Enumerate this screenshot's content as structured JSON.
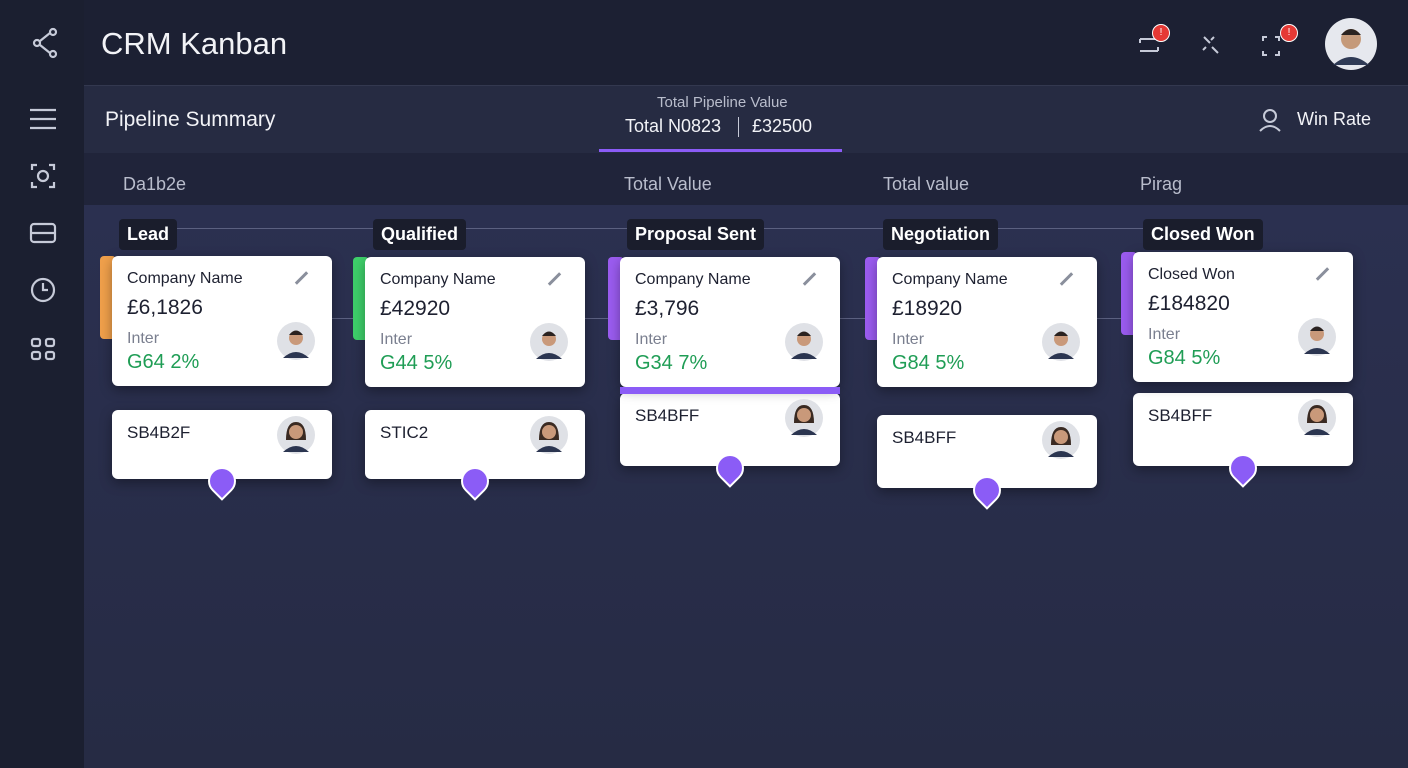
{
  "header": {
    "title": "CRM Kanban",
    "badges": [
      "!",
      "!"
    ]
  },
  "summary": {
    "title": "Pipeline Summary",
    "total_label": "Total Pipeline Value",
    "total_count": "Total N0823",
    "total_value": "£32500",
    "win_rate": "Win Rate"
  },
  "column_headers": [
    "Da1b2e",
    "Total Value",
    "Total value",
    "Pirag"
  ],
  "stages": [
    {
      "name": "Lead",
      "accent": "#f0a04b",
      "card": {
        "company": "Company Name",
        "value": "£6,1826",
        "label": "Inter",
        "rate": "G64 2%"
      },
      "sub": "SB4B2F"
    },
    {
      "name": "Qualified",
      "accent": "#3ecf6a",
      "card": {
        "company": "Company Name",
        "value": "£42920",
        "label": "Inter",
        "rate": "G44 5%"
      },
      "sub": "STIC2"
    },
    {
      "name": "Proposal Sent",
      "accent": "#9b5cf0",
      "card": {
        "company": "Company Name",
        "value": "£3,796",
        "label": "Inter",
        "rate": "G34 7%"
      },
      "sub": "SB4BFF"
    },
    {
      "name": "Negotiation",
      "accent": "#9b5cf0",
      "card": {
        "company": "Company Name",
        "value": "£18920",
        "label": "Inter",
        "rate": "G84 5%"
      },
      "sub": "SB4BFF"
    },
    {
      "name": "Closed Won",
      "accent": "#9b5cf0",
      "card": {
        "company": "Closed Won",
        "value": "£184820",
        "label": "Inter",
        "rate": "G84 5%"
      },
      "sub": "SB4BFF"
    }
  ]
}
